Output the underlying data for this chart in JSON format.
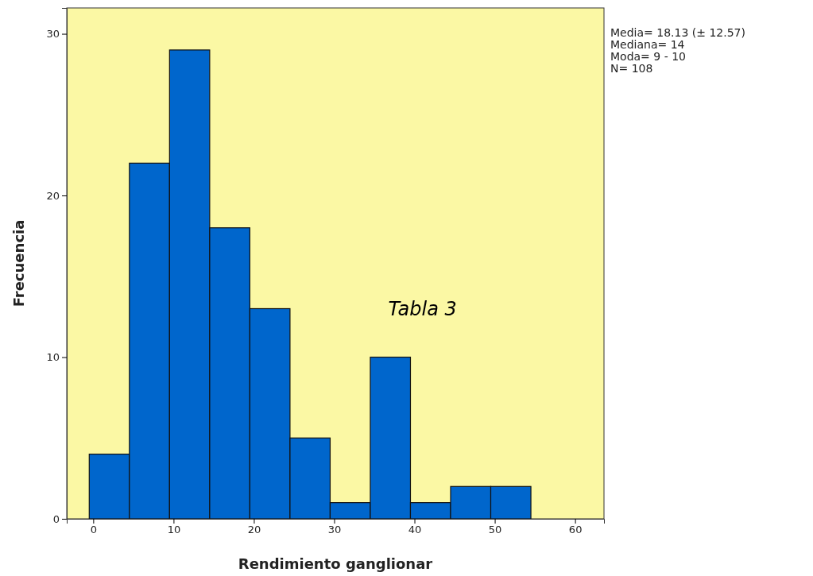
{
  "chart_data": {
    "type": "histogram",
    "xlabel": "Rendimiento ganglionar",
    "ylabel": "Frecuencia",
    "bins": [
      -0.5,
      4.5,
      9.5,
      14.5,
      19.5,
      24.5,
      29.5,
      34.5,
      39.5,
      44.5,
      49.5,
      54.5
    ],
    "values": [
      4,
      22,
      29,
      18,
      13,
      5,
      1,
      10,
      1,
      2,
      2
    ],
    "color": "#0066cc",
    "xlim": [
      -3.3,
      63.6
    ],
    "xticks": [
      0,
      10,
      20,
      30,
      40,
      50,
      60
    ],
    "ylim": [
      0,
      31.6
    ],
    "yticks": [
      0,
      10,
      20,
      30
    ],
    "annotations": [
      "Media= 18.13 (± 12.57)",
      "Mediana= 14",
      "Moda= 9 - 10",
      "N= 108",
      "Tabla 3"
    ],
    "grid": false
  }
}
